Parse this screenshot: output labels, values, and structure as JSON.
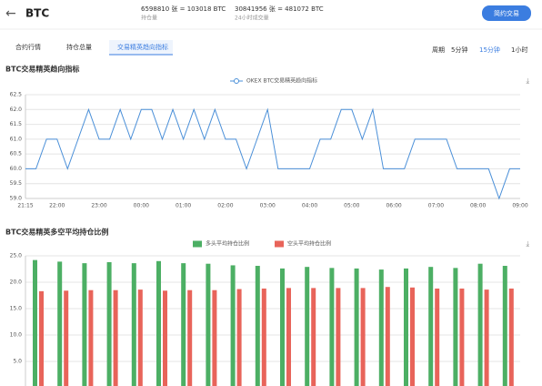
{
  "header": {
    "back": "←",
    "symbol": "BTC",
    "open_interest": "6598810 张 = 103018 BTC",
    "open_interest_label": "持仓量",
    "volume": "30841956 张 = 481072 BTC",
    "volume_label": "24小时成交量",
    "button": "简约交易"
  },
  "tabs": [
    "合约行情",
    "持仓总量",
    "交易精英趋向指标"
  ],
  "period": {
    "label": "周期",
    "options": [
      "5分钟",
      "15分钟",
      "1小时"
    ]
  },
  "chart_data": [
    {
      "type": "line",
      "title": "BTC交易精英趋向指标",
      "categories": [
        "21:15",
        null,
        null,
        "22:00",
        null,
        null,
        null,
        "23:00",
        null,
        null,
        null,
        "00:00",
        null,
        null,
        null,
        "01:00",
        null,
        null,
        null,
        "02:00",
        null,
        null,
        null,
        "03:00",
        null,
        null,
        null,
        "04:00",
        null,
        null,
        null,
        "05:00",
        null,
        null,
        null,
        "06:00",
        null,
        null,
        null,
        "07:00",
        null,
        null,
        null,
        "08:00",
        null,
        null,
        null,
        "09:00"
      ],
      "series": [
        {
          "name": "OKEX BTC交易精英趋向指标",
          "color": "#4a8fd8",
          "values": [
            60,
            60,
            61,
            61,
            60,
            61,
            62,
            61,
            61,
            62,
            61,
            62,
            62,
            61,
            62,
            61,
            62,
            61,
            62,
            61,
            61,
            60,
            61,
            62,
            60,
            60,
            60,
            60,
            61,
            61,
            62,
            62,
            61,
            62,
            60,
            60,
            60,
            61,
            61,
            61,
            61,
            60,
            60,
            60,
            60,
            59,
            60,
            60
          ]
        }
      ],
      "ylim": [
        59,
        62.5
      ],
      "yticks": [
        {
          "value": 59,
          "label": "59.0"
        },
        59.5,
        {
          "value": 60,
          "label": "60.0"
        },
        60.5,
        {
          "value": 61,
          "label": "61.0"
        },
        61.5,
        {
          "value": 62,
          "label": "62.0"
        },
        62.5
      ],
      "grid": true
    },
    {
      "type": "bar",
      "title": "BTC交易精英多空平均持仓比例",
      "categories": [
        null,
        null,
        null,
        null,
        null,
        null,
        null,
        null,
        null,
        null,
        null,
        null,
        null,
        null,
        null,
        null,
        null,
        null,
        null,
        null
      ],
      "series": [
        {
          "name": "多头平均持仓比例",
          "color": "#4caf64",
          "values": [
            24.2,
            23.9,
            23.6,
            23.8,
            23.6,
            24.0,
            23.6,
            23.5,
            23.2,
            23.1,
            22.6,
            22.9,
            22.7,
            22.6,
            22.4,
            22.6,
            22.9,
            22.7,
            23.5,
            23.1
          ]
        },
        {
          "name": "空头平均持仓比例",
          "color": "#e8645a",
          "values": [
            18.3,
            18.4,
            18.5,
            18.5,
            18.6,
            18.4,
            18.5,
            18.5,
            18.7,
            18.8,
            18.9,
            18.9,
            18.9,
            18.9,
            19.1,
            19.0,
            18.8,
            18.8,
            18.6,
            18.8
          ]
        }
      ],
      "ylim": [
        0,
        25
      ],
      "yticks": [
        {
          "value": 5,
          "label": "5.0"
        },
        {
          "value": 10,
          "label": "10.0"
        },
        {
          "value": 15,
          "label": "15.0"
        },
        {
          "value": 20,
          "label": "20.0"
        },
        {
          "value": 25,
          "label": "25.0"
        }
      ],
      "grid": true
    }
  ]
}
